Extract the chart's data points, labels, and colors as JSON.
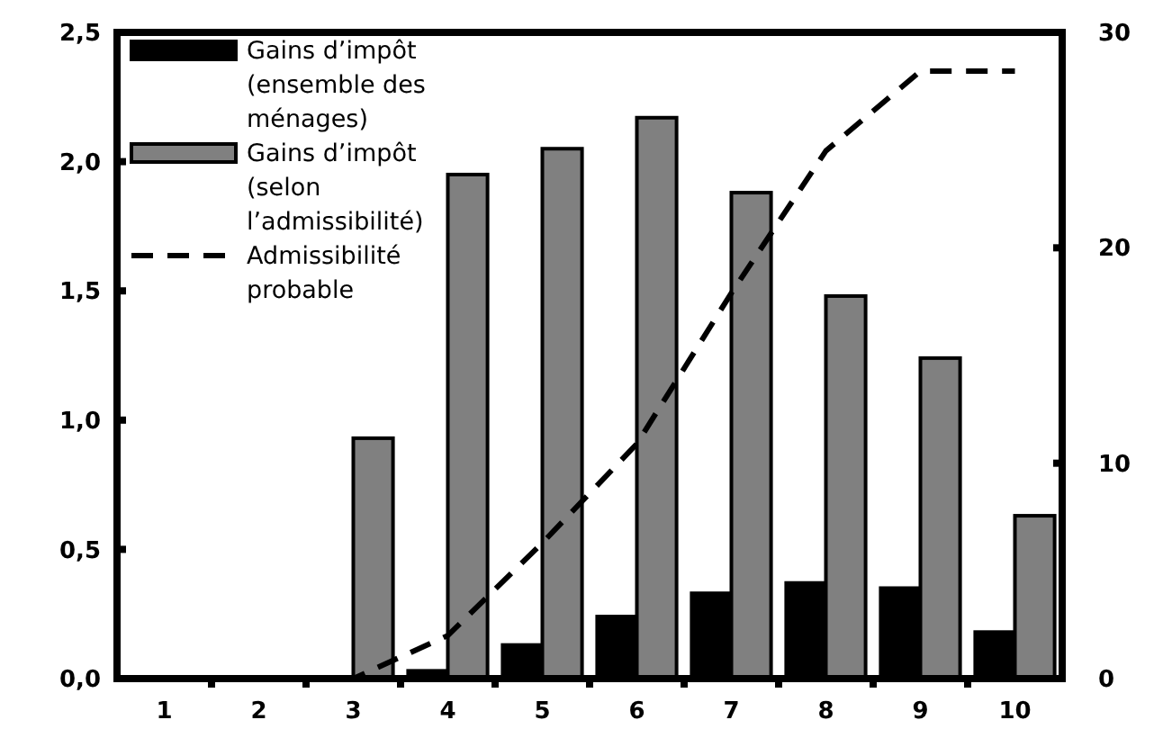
{
  "chart_data": {
    "type": "bar",
    "categories": [
      "1",
      "2",
      "3",
      "4",
      "5",
      "6",
      "7",
      "8",
      "9",
      "10"
    ],
    "series": [
      {
        "name": "Gains d’impôt (ensemble des ménages)",
        "color": "#000000",
        "values": [
          0,
          0,
          0.005,
          0.03,
          0.13,
          0.24,
          0.33,
          0.37,
          0.35,
          0.18
        ]
      },
      {
        "name": "Gains d’impôt (selon l’admissibilité)",
        "color": "#808080",
        "values": [
          0,
          0,
          0.93,
          1.95,
          2.05,
          2.17,
          1.88,
          1.48,
          1.24,
          0.63
        ]
      },
      {
        "name": "Admissibilité probable",
        "type": "line",
        "axis": "y2",
        "color": "#000000",
        "line_style": "dashed",
        "values": [
          0,
          0,
          0,
          2,
          6.3,
          10.9,
          17.9,
          24.5,
          28.2,
          28.2
        ]
      }
    ],
    "ylim": [
      0,
      2.5
    ],
    "yticks": [
      {
        "value": 0,
        "label": "0,0"
      },
      {
        "value": 0.5,
        "label": "0,5"
      },
      {
        "value": 1,
        "label": "1,0"
      },
      {
        "value": 1.5,
        "label": "1,5"
      },
      {
        "value": 2,
        "label": "2,0"
      },
      {
        "value": 2.5,
        "label": "2,5"
      }
    ],
    "y2lim": [
      0,
      30
    ],
    "y2ticks": [
      0,
      10,
      20,
      30
    ],
    "legend": "top left",
    "grid": false
  }
}
